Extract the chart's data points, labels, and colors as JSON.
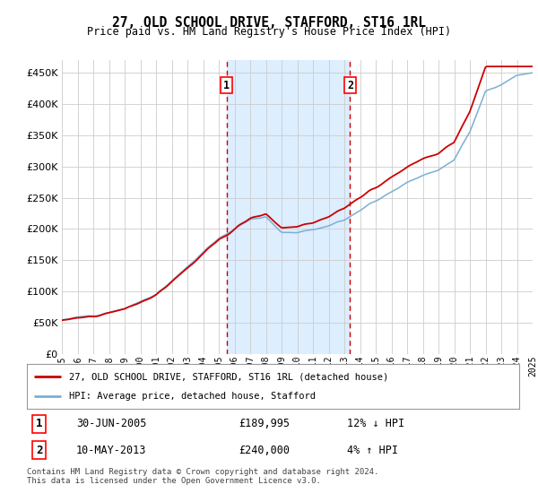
{
  "title": "27, OLD SCHOOL DRIVE, STAFFORD, ST16 1RL",
  "subtitle": "Price paid vs. HM Land Registry's House Price Index (HPI)",
  "footer": "Contains HM Land Registry data © Crown copyright and database right 2024.\nThis data is licensed under the Open Government Licence v3.0.",
  "ylim": [
    0,
    470000
  ],
  "yticks": [
    0,
    50000,
    100000,
    150000,
    200000,
    250000,
    300000,
    350000,
    400000,
    450000
  ],
  "ytick_labels": [
    "£0",
    "£50K",
    "£100K",
    "£150K",
    "£200K",
    "£250K",
    "£300K",
    "£350K",
    "£400K",
    "£450K"
  ],
  "legend_entries": [
    "27, OLD SCHOOL DRIVE, STAFFORD, ST16 1RL (detached house)",
    "HPI: Average price, detached house, Stafford"
  ],
  "sale1_date": 2005.5,
  "sale1_price": 189995,
  "sale2_date": 2013.37,
  "sale2_price": 240000,
  "red_color": "#cc0000",
  "blue_color": "#7bafd4",
  "shade_color": "#ddeeff",
  "grid_color": "#cccccc",
  "background_color": "#ffffff"
}
